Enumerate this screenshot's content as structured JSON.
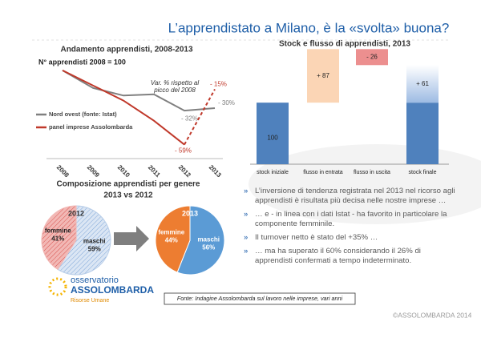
{
  "title": "L’apprendistato a Milano, è la «svolta» buona?",
  "chart_data": [
    {
      "type": "line",
      "title": "Andamento apprendisti, 2008-2013",
      "subtitle": "N° apprendisti 2008 = 100",
      "annotation": "Var. % rispetto al picco del 2008",
      "categories": [
        "2008",
        "2009",
        "2010",
        "2011",
        "2012",
        "2013"
      ],
      "series": [
        {
          "name": "Nord ovest (fonte: Istat)",
          "color": "#808080",
          "values": [
            0,
            -14,
            -20,
            -19,
            -32,
            -30
          ],
          "value_labels": [
            null,
            null,
            null,
            null,
            "- 32%",
            "- 30%"
          ]
        },
        {
          "name": "panel imprese Assolombarda",
          "color": "#c0392b",
          "values": [
            0,
            -12,
            -24,
            -40,
            -59,
            -15
          ],
          "value_labels": [
            null,
            null,
            null,
            null,
            "- 59%",
            "- 15%"
          ],
          "dashed_last_segment": true
        }
      ],
      "ylim": [
        -65,
        5
      ]
    },
    {
      "type": "waterfall",
      "title": "Stock e flusso di apprendisti, 2013",
      "categories": [
        "stock iniziale",
        "flusso in entrata",
        "flusso in uscita",
        "stock finale"
      ],
      "values": [
        100,
        87,
        -26,
        61
      ],
      "value_labels": [
        "100",
        "+ 87",
        "- 26",
        "+ 61"
      ],
      "colors": [
        "#4f81bd",
        "#fbd5b5",
        "#ec8f8f",
        "#c6d9f1"
      ],
      "ylim": [
        0,
        190
      ]
    },
    {
      "type": "pie",
      "title": "2012",
      "categories": [
        "femmine",
        "maschi"
      ],
      "values": [
        41,
        59
      ],
      "value_labels": [
        "41%",
        "59%"
      ],
      "colors": [
        "#f2b8b5",
        "#b7cde8"
      ],
      "hatched": true
    },
    {
      "type": "pie",
      "title": "2013",
      "categories": [
        "femmine",
        "maschi"
      ],
      "values": [
        44,
        56
      ],
      "value_labels": [
        "44%",
        "56%"
      ],
      "colors": [
        "#ed7d31",
        "#5b9bd5"
      ],
      "hatched": false
    }
  ],
  "composition": {
    "title": "Composizione apprendisti per genere",
    "subtitle": "2013 vs 2012"
  },
  "bullets": [
    "L’inversione di tendenza registrata nel 2013 nel ricorso agli apprendisti è risultata più decisa nelle nostre imprese …",
    "… e - in linea con i dati Istat - ha favorito in particolare la componente femminile.",
    "Il turnover netto è stato del +35% …",
    "… ma ha superato il 60% considerando il 26% di apprendisti confermati a tempo indeterminato."
  ],
  "source": "Fonte: Indagine Assolombarda sul lavoro nelle imprese, vari anni",
  "copyright": "©ASSOLOMBARDA 2014",
  "logo": {
    "line1": "osservatorio",
    "line2": "ASSOLOMBARDA",
    "line3": "Risorse Umane"
  }
}
